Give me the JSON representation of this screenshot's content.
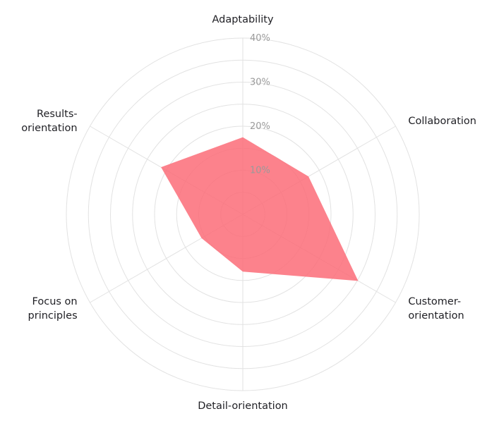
{
  "chart_data": {
    "type": "radar",
    "axes": [
      {
        "label_lines": [
          "Adaptability"
        ],
        "value": 17.5
      },
      {
        "label_lines": [
          "Collaboration"
        ],
        "value": 17.2
      },
      {
        "label_lines": [
          "Customer-",
          "orientation"
        ],
        "value": 30.2
      },
      {
        "label_lines": [
          "Detail-orientation"
        ],
        "value": 13.0
      },
      {
        "label_lines": [
          "Focus on",
          "principles"
        ],
        "value": 10.8
      },
      {
        "label_lines": [
          "Results-",
          "orientation"
        ],
        "value": 21.4
      }
    ],
    "ticks": [
      "10%",
      "20%",
      "30%",
      "40%"
    ],
    "tick_values": [
      10,
      20,
      30,
      40
    ],
    "range": [
      0,
      40
    ],
    "fill_color": "#fb6c78",
    "fill_opacity": 0.85,
    "grid": true
  }
}
